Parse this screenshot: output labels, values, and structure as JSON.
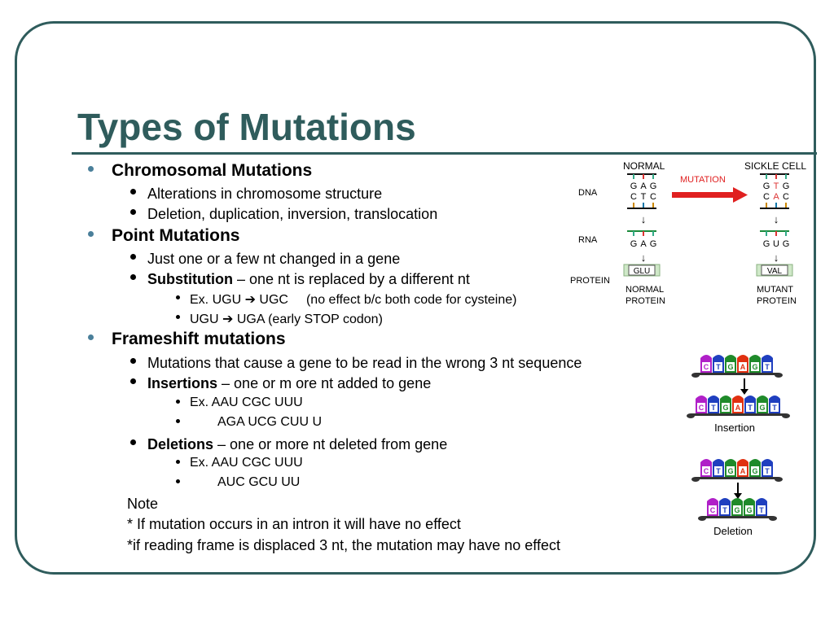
{
  "slide": {
    "title": "Types of Mutations",
    "chromosomal": {
      "heading": "Chromosomal Mutations",
      "items": [
        "Alterations in chromosome structure",
        "Deletion, duplication, inversion, translocation"
      ]
    },
    "point": {
      "heading": "Point Mutations",
      "item1": "Just one or a few nt changed in a gene",
      "substitution_term": "Substitution",
      "substitution_rest": " – one nt is replaced by a different nt",
      "ex1_prefix": "Ex. UGU ",
      "ex1_suffix": " UGC",
      "ex1_note": "(no effect b/c both code for cysteine)",
      "ex2_prefix": "UGU ",
      "ex2_suffix": " UGA (early STOP codon)"
    },
    "frameshift": {
      "heading": "Frameshift mutations",
      "item1": "Mutations that cause a gene to be read in the wrong 3 nt sequence",
      "insertions_term": "Insertions",
      "insertions_rest": " – one or m ore nt added to gene",
      "ins_ex1": "Ex. AAU CGC UUU",
      "ins_ex2": "AGA UCG CUU U",
      "deletions_term": "Deletions",
      "deletions_rest": " – one or more nt deleted from gene",
      "del_ex1": "Ex. AAU CGC UUU",
      "del_ex2": "AUC GCU UU"
    },
    "note": {
      "label": "Note",
      "line1": "* If mutation occurs in an intron it will have no effect",
      "line2": "*if reading frame is displaced 3 nt, the mutation may have no effect"
    }
  },
  "sickle_diagram": {
    "normal_label": "NORMAL",
    "sickle_label": "SICKLE CELL",
    "mutation_label": "MUTATION",
    "dna_label": "DNA",
    "rna_label": "RNA",
    "protein_label": "PROTEIN",
    "normal_dna_top": [
      "G",
      "A",
      "G"
    ],
    "normal_dna_bottom": [
      "C",
      "T",
      "C"
    ],
    "normal_rna": [
      "G",
      "A",
      "G"
    ],
    "normal_aa": "GLU",
    "sickle_dna_top": [
      "G",
      "T",
      "G"
    ],
    "sickle_dna_bottom": [
      "C",
      "A",
      "C"
    ],
    "sickle_rna": [
      "G",
      "U",
      "G"
    ],
    "sickle_aa": "VAL",
    "normal_protein_line1": "NORMAL",
    "normal_protein_line2": "PROTEIN",
    "mutant_protein_line1": "MUTANT",
    "mutant_protein_line2": "PROTEIN",
    "arrow_glyph": "↓"
  },
  "insertion_diagram": {
    "original": [
      "C",
      "T",
      "G",
      "A",
      "G",
      "T"
    ],
    "mutated": [
      "C",
      "T",
      "G",
      "A",
      "T",
      "G",
      "T"
    ],
    "caption": "Insertion"
  },
  "deletion_diagram": {
    "original": [
      "C",
      "T",
      "G",
      "A",
      "G",
      "T"
    ],
    "mutated": [
      "C",
      "T",
      "G",
      "G",
      "T"
    ],
    "caption": "Deletion"
  },
  "colors": {
    "accent": "#2f5c5c",
    "C": "#b020c8",
    "T": "#1f3fbf",
    "G": "#1f8a2a",
    "A": "#e03010",
    "mutation_arrow": "#e02020"
  },
  "icons": {
    "right_arrow": "arrow-right-icon",
    "down_arrow": "arrow-down-icon",
    "bullet": "bullet-dot-icon"
  }
}
